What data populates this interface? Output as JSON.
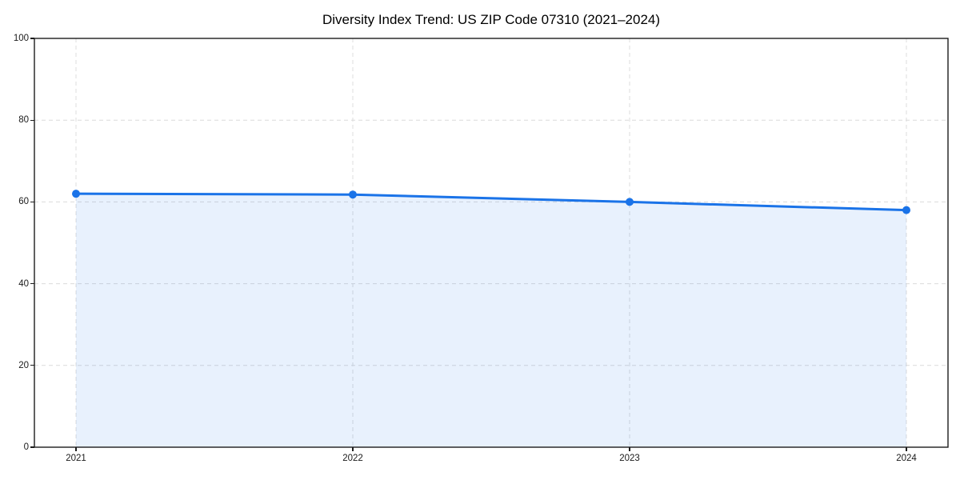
{
  "chart_data": {
    "type": "line",
    "title": "Diversity Index Trend: US ZIP Code 07310 (2021–2024)",
    "x": [
      2021,
      2022,
      2023,
      2024
    ],
    "series": [
      {
        "name": "Diversity Index",
        "values": [
          62.0,
          61.8,
          60.0,
          58.0
        ]
      }
    ],
    "xlabel": "",
    "ylabel": "",
    "ylim": [
      0,
      100
    ],
    "yticks": [
      0,
      20,
      40,
      60,
      80,
      100
    ],
    "grid": "dashed",
    "legend": "none",
    "area_fill": true,
    "marker": "circle",
    "colors": {
      "line": "#1a73e8",
      "marker": "#1a73e8",
      "area_fill": "rgba(26,115,232,0.10)",
      "gridline": "#dcdcdc",
      "axis": "#1c1c1c",
      "tick_label": "#1a1a1a",
      "title": "#000000",
      "background": "#ffffff"
    }
  }
}
